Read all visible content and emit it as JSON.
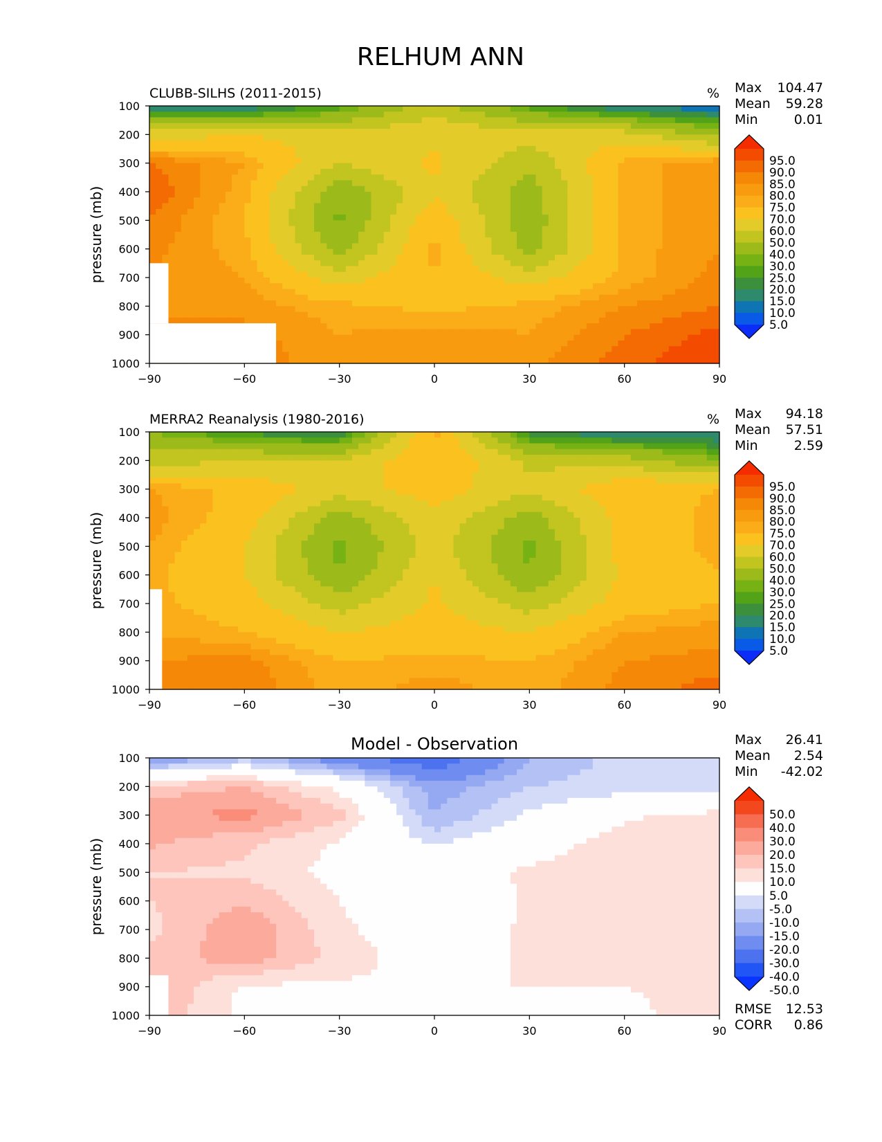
{
  "figure": {
    "title": "RELHUM ANN"
  },
  "colors": {
    "abs_levels": [
      "#0c2df7",
      "#0a5ae8",
      "#0f74b4",
      "#2e8a6c",
      "#3c8f3b",
      "#53a318",
      "#76b214",
      "#9cbb1b",
      "#c2c41f",
      "#e3cb2a",
      "#fbc21f",
      "#fbad19",
      "#f89b0f",
      "#f58807",
      "#f46a03",
      "#f34b00",
      "#f52c00"
    ],
    "diff_levels": [
      "#0a34ff",
      "#2255f5",
      "#4d72ef",
      "#6f8cf0",
      "#95a8f2",
      "#b3c1f5",
      "#d3dbf8",
      "#fefefe",
      "#fee0da",
      "#fdc5bc",
      "#fbaa9b",
      "#f98d79",
      "#f66d52",
      "#f3471e",
      "#f52c00"
    ]
  },
  "chart_data": [
    {
      "type": "heatmap",
      "title": "CLUBB-SILHS (2011-2015)",
      "units": "%",
      "ylabel": "pressure (mb)",
      "xlim": [
        -90,
        90
      ],
      "ylim": [
        1000,
        100
      ],
      "x_ticks": [
        "−90",
        "−60",
        "−30",
        "0",
        "30",
        "60",
        "90"
      ],
      "y_ticks": [
        "100",
        "200",
        "300",
        "400",
        "500",
        "600",
        "700",
        "800",
        "900",
        "1000"
      ],
      "stats": [
        {
          "label": "Max",
          "value": "104.47"
        },
        {
          "label": "Mean",
          "value": "59.28"
        },
        {
          "label": "Min",
          "value": "0.01"
        }
      ],
      "colorbar_levels": [
        "95.0",
        "90.0",
        "85.0",
        "80.0",
        "75.0",
        "70.0",
        "60.0",
        "50.0",
        "40.0",
        "30.0",
        "25.0",
        "20.0",
        "15.0",
        "10.0",
        "5.0"
      ],
      "x": [
        -90,
        -60,
        -30,
        0,
        30,
        60,
        90
      ],
      "y": [
        100,
        200,
        300,
        400,
        500,
        600,
        700,
        800,
        900,
        1000
      ],
      "z": [
        [
          5,
          8,
          22,
          45,
          22,
          8,
          5
        ],
        [
          55,
          60,
          55,
          58,
          55,
          55,
          35
        ],
        [
          85,
          75,
          50,
          62,
          42,
          72,
          80
        ],
        [
          90,
          72,
          32,
          58,
          35,
          72,
          80
        ],
        [
          85,
          70,
          28,
          68,
          33,
          72,
          80
        ],
        [
          82,
          72,
          35,
          72,
          35,
          72,
          80
        ],
        [
          80,
          75,
          55,
          70,
          55,
          72,
          82
        ],
        [
          80,
          78,
          72,
          68,
          72,
          80,
          85
        ],
        [
          80,
          82,
          75,
          78,
          75,
          85,
          92
        ],
        [
          80,
          85,
          75,
          80,
          78,
          88,
          95
        ]
      ],
      "mask": [
        [
          -90,
          -84,
          650,
          860
        ],
        [
          -90,
          -50,
          860,
          1000
        ]
      ]
    },
    {
      "type": "heatmap",
      "title": "MERRA2 Reanalysis (1980-2016)",
      "units": "%",
      "ylabel": "pressure (mb)",
      "xlim": [
        -90,
        90
      ],
      "ylim": [
        1000,
        100
      ],
      "x_ticks": [
        "−90",
        "−60",
        "−30",
        "0",
        "30",
        "60",
        "90"
      ],
      "y_ticks": [
        "100",
        "200",
        "300",
        "400",
        "500",
        "600",
        "700",
        "800",
        "900",
        "1000"
      ],
      "stats": [
        {
          "label": "Max",
          "value": "94.18"
        },
        {
          "label": "Mean",
          "value": "57.51"
        },
        {
          "label": "Min",
          "value": "2.59"
        }
      ],
      "colorbar_levels": [
        "95.0",
        "90.0",
        "85.0",
        "80.0",
        "75.0",
        "70.0",
        "60.0",
        "50.0",
        "40.0",
        "30.0",
        "25.0",
        "20.0",
        "15.0",
        "10.0",
        "5.0"
      ],
      "x": [
        -90,
        -60,
        -30,
        0,
        30,
        60,
        90
      ],
      "y": [
        100,
        200,
        300,
        400,
        500,
        600,
        700,
        800,
        900,
        1000
      ],
      "z": [
        [
          30,
          18,
          12,
          72,
          15,
          8,
          8
        ],
        [
          45,
          50,
          50,
          70,
          48,
          45,
          30
        ],
        [
          75,
          68,
          55,
          65,
          52,
          68,
          70
        ],
        [
          78,
          65,
          35,
          58,
          35,
          65,
          72
        ],
        [
          75,
          60,
          27,
          55,
          28,
          65,
          72
        ],
        [
          72,
          60,
          30,
          60,
          30,
          62,
          70
        ],
        [
          72,
          65,
          45,
          62,
          45,
          65,
          70
        ],
        [
          75,
          70,
          60,
          65,
          60,
          75,
          78
        ],
        [
          80,
          82,
          70,
          72,
          70,
          80,
          82
        ],
        [
          85,
          85,
          72,
          78,
          72,
          82,
          88
        ]
      ],
      "mask": [
        [
          -90,
          -86,
          650,
          1000
        ]
      ]
    },
    {
      "type": "heatmap",
      "title": "Model - Observation",
      "ylabel": "pressure (mb)",
      "xlim": [
        -90,
        90
      ],
      "ylim": [
        1000,
        100
      ],
      "x_ticks": [
        "−90",
        "−60",
        "−30",
        "0",
        "30",
        "60",
        "90"
      ],
      "y_ticks": [
        "100",
        "200",
        "300",
        "400",
        "500",
        "600",
        "700",
        "800",
        "900",
        "1000"
      ],
      "stats": [
        {
          "label": "Max",
          "value": "26.41"
        },
        {
          "label": "Mean",
          "value": "2.54"
        },
        {
          "label": "Min",
          "value": "-42.02"
        }
      ],
      "colorbar_levels": [
        "50.0",
        "40.0",
        "30.0",
        "20.0",
        "15.0",
        "10.0",
        "5.0",
        "-5.0",
        "-10.0",
        "-15.0",
        "-20.0",
        "-30.0",
        "-40.0",
        "-50.0"
      ],
      "bottom_stats": [
        {
          "label": "RMSE",
          "value": "12.53"
        },
        {
          "label": "CORR",
          "value": "0.86"
        }
      ],
      "x": [
        -90,
        -60,
        -30,
        0,
        30,
        60,
        90
      ],
      "y": [
        100,
        200,
        300,
        400,
        500,
        600,
        700,
        800,
        900,
        1000
      ],
      "z": [
        [
          -22,
          -12,
          -25,
          -38,
          -15,
          -8,
          -8
        ],
        [
          12,
          15,
          3,
          -18,
          -10,
          -8,
          -10
        ],
        [
          18,
          22,
          12,
          -15,
          -4,
          4,
          7
        ],
        [
          16,
          11,
          4,
          -6,
          2,
          8,
          9
        ],
        [
          10,
          9,
          3,
          2,
          6,
          8,
          8
        ],
        [
          10,
          14,
          5,
          -3,
          6,
          8,
          8
        ],
        [
          8,
          20,
          6,
          1,
          6,
          7,
          8
        ],
        [
          12,
          18,
          8,
          1,
          6,
          7,
          8
        ],
        [
          15,
          4,
          4,
          5,
          5,
          5,
          6
        ],
        [
          15,
          3,
          3,
          2,
          5,
          4,
          7
        ]
      ],
      "mask": [
        [
          -90,
          -84,
          860,
          1000
        ]
      ]
    }
  ]
}
